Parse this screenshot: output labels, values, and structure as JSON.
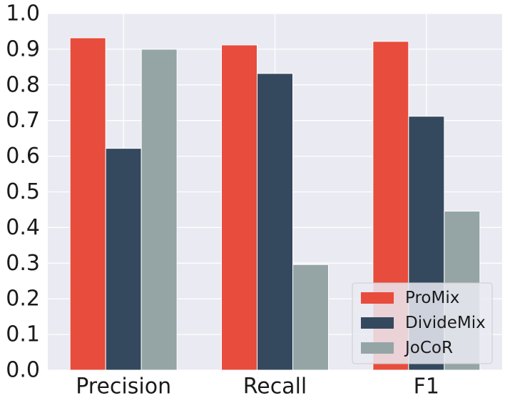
{
  "chart_data": {
    "type": "bar",
    "title": "",
    "xlabel": "",
    "ylabel": "",
    "categories": [
      "Precision",
      "Recall",
      "F1"
    ],
    "series": [
      {
        "name": "ProMix",
        "values": [
          0.932,
          0.912,
          0.922
        ],
        "color": "#e74c3c"
      },
      {
        "name": "DivideMix",
        "values": [
          0.622,
          0.832,
          0.712
        ],
        "color": "#34495e"
      },
      {
        "name": "JoCoR",
        "values": [
          0.9,
          0.296,
          0.446
        ],
        "color": "#95a5a6"
      }
    ],
    "ylim": [
      0,
      1.0
    ],
    "yticks": [
      "0.0",
      "0.1",
      "0.2",
      "0.3",
      "0.4",
      "0.5",
      "0.6",
      "0.7",
      "0.8",
      "0.9",
      "1.0"
    ],
    "grid": true,
    "legend_position": "bottom-right",
    "background_color": "#eaeaf2",
    "grid_color": "#ffffff"
  }
}
